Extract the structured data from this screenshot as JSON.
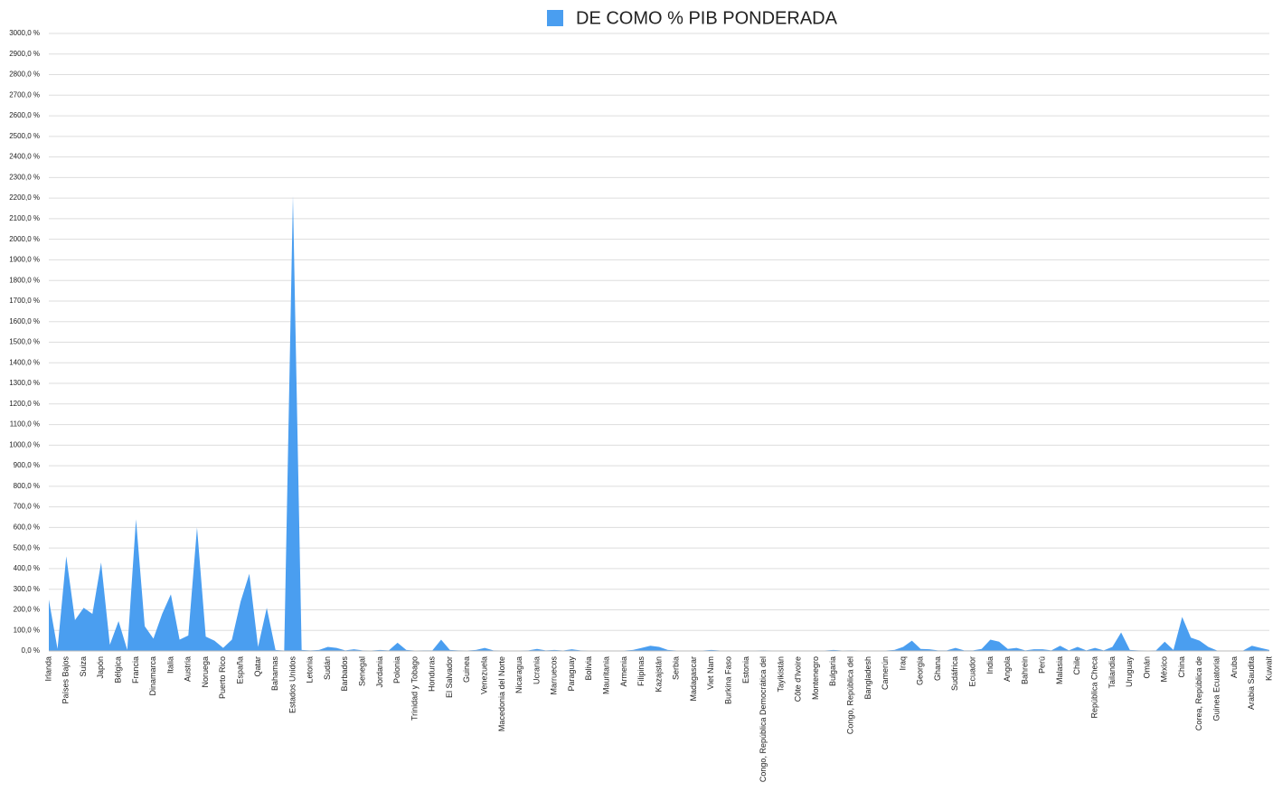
{
  "chart_data": {
    "type": "area",
    "legend": "top",
    "grid": true,
    "series": [
      {
        "name": "DE COMO % PIB PONDERADA",
        "color": "#4a9ef0",
        "values": [
          250,
          10,
          460,
          150,
          210,
          180,
          430,
          30,
          145,
          5,
          640,
          120,
          60,
          180,
          275,
          55,
          75,
          600,
          70,
          50,
          15,
          55,
          240,
          375,
          20,
          210,
          5,
          2,
          2210,
          5,
          3,
          5,
          20,
          15,
          3,
          8,
          3,
          2,
          5,
          3,
          40,
          5,
          2,
          3,
          3,
          55,
          5,
          3,
          2,
          5,
          15,
          3,
          2,
          2,
          2,
          3,
          10,
          3,
          5,
          2,
          8,
          3,
          2,
          2,
          2,
          2,
          2,
          5,
          15,
          25,
          20,
          5,
          2,
          2,
          2,
          2,
          5,
          2,
          2,
          2,
          2,
          2,
          3,
          2,
          2,
          2,
          2,
          2,
          2,
          2,
          5,
          2,
          3,
          2,
          2,
          2,
          2,
          5,
          20,
          50,
          10,
          8,
          3,
          3,
          15,
          3,
          3,
          10,
          55,
          45,
          10,
          15,
          3,
          8,
          8,
          3,
          25,
          3,
          20,
          3,
          15,
          3,
          20,
          90,
          5,
          3,
          2,
          3,
          45,
          5,
          165,
          65,
          50,
          20,
          2,
          2,
          2,
          2,
          25,
          15,
          5
        ]
      }
    ],
    "categories": [
      "Irlanda",
      null,
      "Países Bajos",
      null,
      "Suiza",
      null,
      "Japón",
      null,
      "Bélgica",
      null,
      "Francia",
      null,
      "Dinamarca",
      null,
      "Italia",
      null,
      "Austria",
      null,
      "Noruega",
      null,
      "Puerto Rico",
      null,
      "España",
      null,
      "Qatar",
      null,
      "Bahamas",
      null,
      "Estados Unidos",
      null,
      "Letonia",
      null,
      "Sudán",
      null,
      "Barbados",
      null,
      "Senegal",
      null,
      "Jordania",
      null,
      "Polonia",
      null,
      "Trinidad y Tobago",
      null,
      "Honduras",
      null,
      "El Salvador",
      null,
      "Guinea",
      null,
      "Venezuela",
      null,
      "Macedonia del Norte",
      null,
      "Nicaragua",
      null,
      "Ucrania",
      null,
      "Marruecos",
      null,
      "Paraguay",
      null,
      "Bolivia",
      null,
      "Mauritania",
      null,
      "Armenia",
      null,
      "Filipinas",
      null,
      "Kazajstán",
      null,
      "Serbia",
      null,
      "Madagascar",
      null,
      "Viet Nam",
      null,
      "Burkina Faso",
      null,
      "Estonia",
      null,
      "Congo, República Democrática del",
      null,
      "Tayikistán",
      null,
      "Côte d'Ivoire",
      null,
      "Montenegro",
      null,
      "Bulgaria",
      null,
      "Congo, República del",
      null,
      "Bangladesh",
      null,
      "Camerún",
      null,
      "Iraq",
      null,
      "Georgia",
      null,
      "Ghana",
      null,
      "Sudáfrica",
      null,
      "Ecuador",
      null,
      "India",
      null,
      "Angola",
      null,
      "Bahrein",
      null,
      "Perú",
      null,
      "Malasia",
      null,
      "Chile",
      null,
      "República Checa",
      null,
      "Tailandia",
      null,
      "Uruguay",
      null,
      "Omán",
      null,
      "México",
      null,
      "China",
      null,
      "Corea, República de",
      null,
      "Guinea Ecuatorial",
      null,
      "Aruba",
      null,
      "Arabia Saudita",
      null,
      "Kuwait"
    ],
    "ylim": [
      0,
      3000
    ],
    "yticks": [
      {
        "value": 0,
        "label": "0,0 %"
      },
      {
        "value": 100,
        "label": "100,0 %"
      },
      {
        "value": 200,
        "label": "200,0 %"
      },
      {
        "value": 300,
        "label": "300,0 %"
      },
      {
        "value": 400,
        "label": "400,0 %"
      },
      {
        "value": 500,
        "label": "500,0 %"
      },
      {
        "value": 600,
        "label": "600,0 %"
      },
      {
        "value": 700,
        "label": "700,0 %"
      },
      {
        "value": 800,
        "label": "800,0 %"
      },
      {
        "value": 900,
        "label": "900,0 %"
      },
      {
        "value": 1000,
        "label": "1000,0 %"
      },
      {
        "value": 1100,
        "label": "1100,0 %"
      },
      {
        "value": 1200,
        "label": "1200,0 %"
      },
      {
        "value": 1300,
        "label": "1300,0 %"
      },
      {
        "value": 1400,
        "label": "1400,0 %"
      },
      {
        "value": 1500,
        "label": "1500,0 %"
      },
      {
        "value": 1600,
        "label": "1600,0 %"
      },
      {
        "value": 1700,
        "label": "1700,0 %"
      },
      {
        "value": 1800,
        "label": "1800,0 %"
      },
      {
        "value": 1900,
        "label": "1900,0 %"
      },
      {
        "value": 2000,
        "label": "2000,0 %"
      },
      {
        "value": 2100,
        "label": "2100,0 %"
      },
      {
        "value": 2200,
        "label": "2200,0 %"
      },
      {
        "value": 2300,
        "label": "2300,0 %"
      },
      {
        "value": 2400,
        "label": "2400,0 %"
      },
      {
        "value": 2500,
        "label": "2500,0 %"
      },
      {
        "value": 2600,
        "label": "2600,0 %"
      },
      {
        "value": 2700,
        "label": "2700,0 %"
      },
      {
        "value": 2800,
        "label": "2800,0 %"
      },
      {
        "value": 2900,
        "label": "2900,0 %"
      },
      {
        "value": 3000,
        "label": "3000,0 %"
      }
    ]
  }
}
